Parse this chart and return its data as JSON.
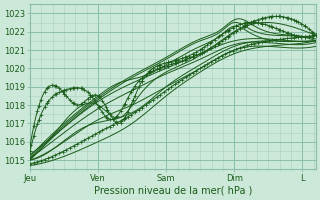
{
  "xlabel": "Pression niveau de la mer( hPa )",
  "ylim": [
    1014.5,
    1023.5
  ],
  "xlim": [
    0.0,
    4.2
  ],
  "yticks": [
    1015,
    1016,
    1017,
    1018,
    1019,
    1020,
    1021,
    1022,
    1023
  ],
  "xtick_positions": [
    0.0,
    1.0,
    2.0,
    3.0,
    4.0
  ],
  "xtick_labels": [
    "Jeu",
    "Ven",
    "Sam",
    "Dim",
    "L"
  ],
  "bg_color": "#cce8d8",
  "grid_minor_color": "#a8cfc0",
  "grid_major_color": "#88bfaa",
  "line_color": "#1a5c1a",
  "tick_color": "#1a5c1a",
  "label_color": "#1a5c1a"
}
